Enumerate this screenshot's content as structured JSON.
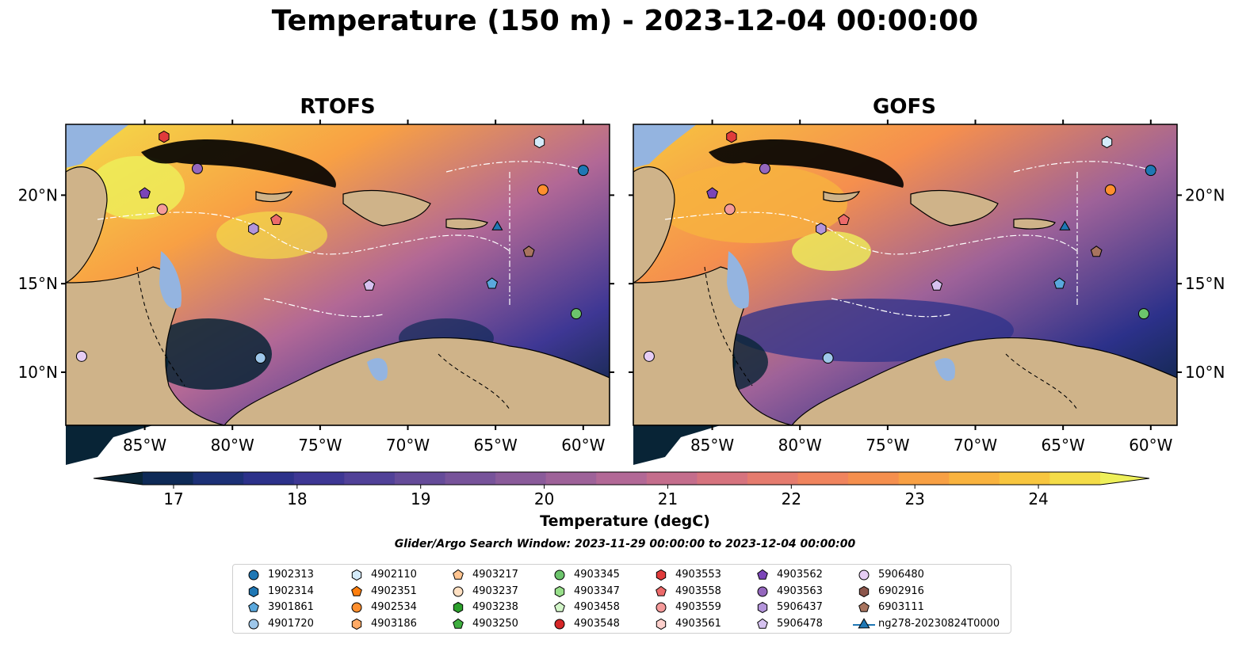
{
  "title": "Temperature (150 m) - 2023-12-04 00:00:00",
  "panels": [
    {
      "title": "RTOFS"
    },
    {
      "title": "GOFS"
    }
  ],
  "axes": {
    "lon_ticks": [
      "85°W",
      "80°W",
      "75°W",
      "70°W",
      "65°W",
      "60°W"
    ],
    "lon_values": [
      -85,
      -80,
      -75,
      -70,
      -65,
      -60
    ],
    "lat_ticks": [
      "20°N",
      "15°N",
      "10°N"
    ],
    "lat_values": [
      20,
      15,
      10
    ],
    "lon_range": [
      -89.5,
      -58.5
    ],
    "lat_range": [
      7,
      24
    ]
  },
  "colorbar": {
    "label": "Temperature (degC)",
    "ticks": [
      "17",
      "18",
      "19",
      "20",
      "21",
      "22",
      "23",
      "24"
    ],
    "tick_values": [
      17,
      18,
      19,
      20,
      21,
      22,
      23,
      24
    ],
    "range": [
      16.75,
      24.5
    ],
    "extend": "both",
    "colors": [
      "#082436",
      "#0e2a57",
      "#1c3076",
      "#2c318a",
      "#3e3794",
      "#514198",
      "#654b99",
      "#77539a",
      "#8a5b9a",
      "#9e6299",
      "#b26896",
      "#c46d8c",
      "#d6737e",
      "#e57b6e",
      "#f0845e",
      "#f58f4e",
      "#f8a044",
      "#f9b33f",
      "#f8c63f",
      "#f4dc48",
      "#eef05a"
    ]
  },
  "search_window": "Glider/Argo Search Window: 2023-11-29 00:00:00 to 2023-12-04 00:00:00",
  "legend": [
    {
      "label": "1902313",
      "color": "#1f77b4",
      "marker": "circle"
    },
    {
      "label": "1902314",
      "color": "#1f77b4",
      "marker": "hexagon"
    },
    {
      "label": "3901861",
      "color": "#5aa8dd",
      "marker": "pentagon"
    },
    {
      "label": "4901720",
      "color": "#9ec7ea",
      "marker": "circle"
    },
    {
      "label": "4902110",
      "color": "#d4ebfa",
      "marker": "hexagon"
    },
    {
      "label": "4902351",
      "color": "#ff7f0e",
      "marker": "pentagon"
    },
    {
      "label": "4902534",
      "color": "#ff8f2e",
      "marker": "circle"
    },
    {
      "label": "4903186",
      "color": "#ffaa66",
      "marker": "hexagon"
    },
    {
      "label": "4903217",
      "color": "#ffc490",
      "marker": "pentagon"
    },
    {
      "label": "4903237",
      "color": "#ffe0c2",
      "marker": "circle"
    },
    {
      "label": "4903238",
      "color": "#2ca02c",
      "marker": "hexagon"
    },
    {
      "label": "4903250",
      "color": "#3fae3f",
      "marker": "pentagon"
    },
    {
      "label": "4903345",
      "color": "#6cc46c",
      "marker": "circle"
    },
    {
      "label": "4903347",
      "color": "#98df8a",
      "marker": "hexagon"
    },
    {
      "label": "4903458",
      "color": "#d2f5c8",
      "marker": "pentagon"
    },
    {
      "label": "4903548",
      "color": "#d62728",
      "marker": "circle"
    },
    {
      "label": "4903553",
      "color": "#e03b3b",
      "marker": "hexagon"
    },
    {
      "label": "4903558",
      "color": "#ec6a6a",
      "marker": "pentagon"
    },
    {
      "label": "4903559",
      "color": "#f59a9a",
      "marker": "circle"
    },
    {
      "label": "4903561",
      "color": "#fdd0cc",
      "marker": "hexagon"
    },
    {
      "label": "4903562",
      "color": "#7b45b8",
      "marker": "pentagon"
    },
    {
      "label": "4903563",
      "color": "#9467bd",
      "marker": "circle"
    },
    {
      "label": "5906437",
      "color": "#b394da",
      "marker": "hexagon"
    },
    {
      "label": "5906478",
      "color": "#d6c2f0",
      "marker": "pentagon"
    },
    {
      "label": "5906480",
      "color": "#e6cdf5",
      "marker": "circle"
    },
    {
      "label": "6902916",
      "color": "#8c564b",
      "marker": "hexagon"
    },
    {
      "label": "6903111",
      "color": "#a8745f",
      "marker": "pentagon"
    },
    {
      "label": "ng278-20230824T0000",
      "color": "#1f77b4",
      "marker": "triangle-line"
    }
  ],
  "floats": [
    {
      "id": "1902313",
      "lon": -60.0,
      "lat": 21.4
    },
    {
      "id": "4902534",
      "lon": -62.3,
      "lat": 20.3
    },
    {
      "id": "4902110",
      "lon": -62.5,
      "lat": 23.0
    },
    {
      "id": "4903559",
      "lon": -84.0,
      "lat": 19.2
    },
    {
      "id": "4903562",
      "lon": -85.0,
      "lat": 20.1
    },
    {
      "id": "4903563",
      "lon": -82.0,
      "lat": 21.5
    },
    {
      "id": "4903553",
      "lon": -83.9,
      "lat": 23.3
    },
    {
      "id": "4903558",
      "lon": -77.5,
      "lat": 18.6
    },
    {
      "id": "5906437",
      "lon": -78.8,
      "lat": 18.1
    },
    {
      "id": "5906478",
      "lon": -72.2,
      "lat": 14.9
    },
    {
      "id": "3901861",
      "lon": -65.2,
      "lat": 15.0
    },
    {
      "id": "6903111",
      "lon": -63.1,
      "lat": 16.8
    },
    {
      "id": "4903345",
      "lon": -60.4,
      "lat": 13.3
    },
    {
      "id": "4901720",
      "lon": -78.4,
      "lat": 10.8
    },
    {
      "id": "5906480",
      "lon": -88.6,
      "lat": 10.9
    },
    {
      "id": "ng278-20230824T0000",
      "lon": -64.9,
      "lat": 18.2
    }
  ]
}
